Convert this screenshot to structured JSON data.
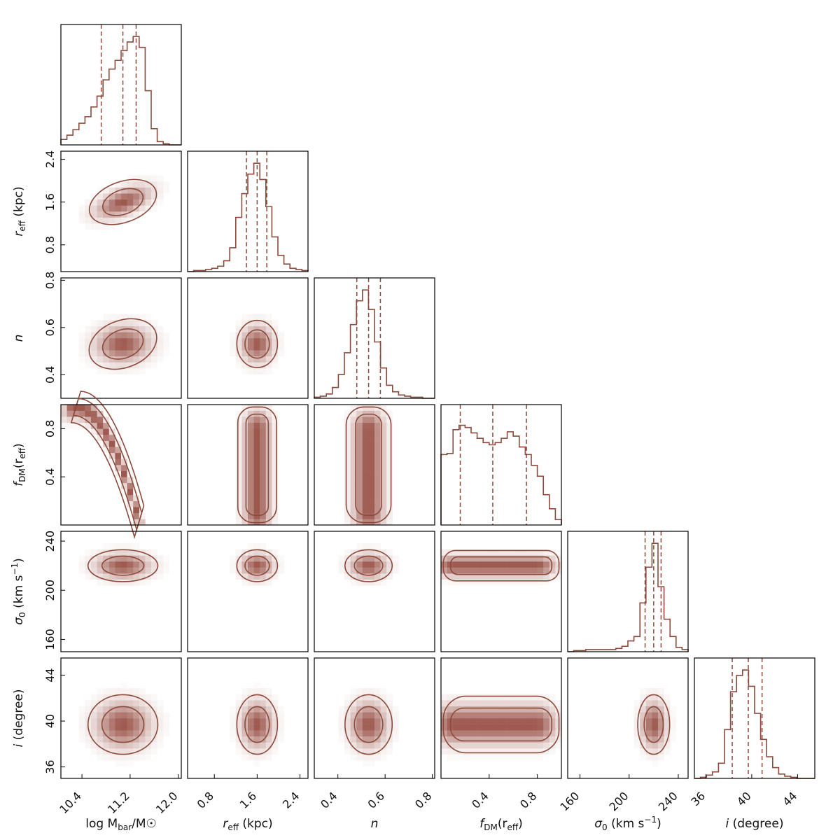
{
  "chart_data": {
    "type": "corner",
    "colors": {
      "line": "#8b4a3c",
      "fill_max": "#8b3a2e",
      "frame": "#000000"
    },
    "parameters": [
      {
        "key": "logM",
        "label_main": "log M",
        "label_sub": "bar",
        "label_suffix": "/M☉",
        "range": [
          10.05,
          12.05
        ],
        "ticks": [
          10.4,
          11.2,
          12.0
        ],
        "tick_labels": [
          "10.4",
          "11.2",
          "12.0"
        ],
        "median": 11.08,
        "q16": 10.72,
        "q84": 11.3,
        "hist": [
          0.05,
          0.09,
          0.14,
          0.2,
          0.26,
          0.35,
          0.45,
          0.6,
          0.7,
          0.78,
          0.87,
          0.95,
          1.0,
          0.9,
          0.5,
          0.15,
          0.03,
          0.01,
          0.0,
          0.0
        ]
      },
      {
        "key": "reff",
        "label_main": "r",
        "label_sub": "eff",
        "label_suffix": " (kpc)",
        "range": [
          0.3,
          2.55
        ],
        "ticks": [
          0.8,
          1.6,
          2.4
        ],
        "tick_labels": [
          "0.8",
          "1.6",
          "2.4"
        ],
        "median": 1.6,
        "q16": 1.4,
        "q84": 1.78,
        "hist": [
          0.0,
          0.01,
          0.01,
          0.02,
          0.03,
          0.05,
          0.1,
          0.22,
          0.5,
          0.72,
          0.9,
          1.0,
          0.85,
          0.6,
          0.32,
          0.15,
          0.07,
          0.03,
          0.02,
          0.01
        ]
      },
      {
        "key": "n",
        "label_main": "n",
        "label_sub": "",
        "label_suffix": "",
        "range": [
          0.3,
          0.81
        ],
        "ticks": [
          0.4,
          0.6,
          0.8
        ],
        "tick_labels": [
          "0.4",
          "0.6",
          "0.8"
        ],
        "median": 0.53,
        "q16": 0.48,
        "q84": 0.58,
        "hist": [
          0.01,
          0.02,
          0.04,
          0.1,
          0.22,
          0.42,
          0.68,
          0.9,
          1.0,
          0.82,
          0.52,
          0.28,
          0.12,
          0.06,
          0.03,
          0.02,
          0.01,
          0.01,
          0.0,
          0.0
        ]
      },
      {
        "key": "fdm",
        "label_main": "f",
        "label_sub": "DM",
        "label_suffix": "(r",
        "label_sub2": "eff",
        "label_end": ")",
        "range": [
          0.0,
          1.0
        ],
        "ticks": [
          0.4,
          0.8
        ],
        "tick_labels": [
          "0.4",
          "0.8"
        ],
        "median": 0.43,
        "q16": 0.16,
        "q84": 0.71,
        "hist": [
          0.65,
          0.66,
          0.88,
          0.92,
          0.9,
          0.85,
          0.8,
          0.76,
          0.74,
          0.76,
          0.8,
          0.86,
          0.82,
          0.72,
          0.65,
          0.55,
          0.45,
          0.28,
          0.15,
          0.05
        ]
      },
      {
        "key": "sigma",
        "label_main": "σ",
        "label_sub": "0",
        "label_suffix": " (km s",
        "label_sup": "−1",
        "label_end": ")",
        "range": [
          150,
          248
        ],
        "ticks": [
          160,
          200,
          240
        ],
        "tick_labels": [
          "160",
          "200",
          "240"
        ],
        "median": 220,
        "q16": 213,
        "q84": 226,
        "hist": [
          0.0,
          0.01,
          0.01,
          0.02,
          0.02,
          0.02,
          0.02,
          0.02,
          0.03,
          0.05,
          0.1,
          0.14,
          0.45,
          0.78,
          1.0,
          0.6,
          0.3,
          0.14,
          0.04,
          0.02
        ]
      },
      {
        "key": "inc",
        "label_main": "i",
        "label_sub": "",
        "label_suffix": " (degree)",
        "range": [
          35,
          45.5
        ],
        "ticks": [
          36,
          40,
          44
        ],
        "tick_labels": [
          "36",
          "40",
          "44"
        ],
        "median": 39.7,
        "q16": 38.3,
        "q84": 40.9,
        "hist": [
          0.0,
          0.01,
          0.03,
          0.06,
          0.14,
          0.45,
          0.8,
          0.95,
          1.0,
          0.85,
          0.6,
          0.36,
          0.2,
          0.1,
          0.04,
          0.02,
          0.01,
          0.0,
          0.0,
          0.0
        ]
      }
    ]
  }
}
